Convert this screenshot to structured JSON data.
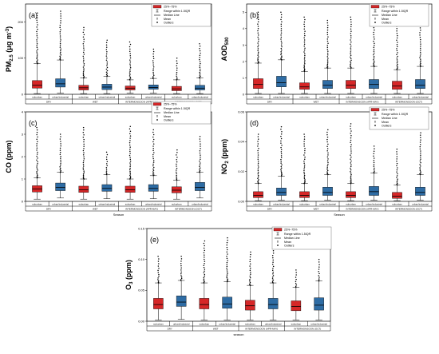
{
  "chart_data": [
    {
      "type": "box",
      "panel": "(a)",
      "ylabel": "PM2.5 (μg m-3)",
      "ylabel_main": "PM",
      "ylabel_sub": "2.5",
      "ylabel_unit": "(μg m",
      "ylabel_unit_sup": "-3",
      "ylabel_unit_end": ")",
      "ylim": [
        0,
        250
      ],
      "yticks": [
        "0",
        "100",
        "200"
      ],
      "ytick_values": [
        0,
        100,
        200
      ],
      "seasons": [
        "DRY",
        "WET",
        "INTERMONSOON (APR-MAY)",
        "INTERMONSOON (OCT)"
      ],
      "categories": [
        "suburban",
        "urban/industrial"
      ],
      "xlabel": "",
      "legend": [
        "25%~75%",
        "Range within 1.5IQR",
        "Median Line",
        "Mean",
        "Outliers"
      ],
      "boxes": [
        {
          "season": "DRY",
          "site": "suburban",
          "min": 2,
          "q1": 17,
          "median": 25,
          "q3": 38,
          "max": 85,
          "outlier_max": 225
        },
        {
          "season": "DRY",
          "site": "urban/industrial",
          "min": 3,
          "q1": 20,
          "median": 29,
          "q3": 43,
          "max": 95,
          "outlier_max": 230
        },
        {
          "season": "WET",
          "site": "suburban",
          "min": 2,
          "q1": 12,
          "median": 18,
          "q3": 25,
          "max": 45,
          "outlier_max": 185
        },
        {
          "season": "WET",
          "site": "urban/industrial",
          "min": 2,
          "q1": 13,
          "median": 20,
          "q3": 28,
          "max": 50,
          "outlier_max": 150
        },
        {
          "season": "INTERMONSOON (APR-MAY)",
          "site": "suburban",
          "min": 3,
          "q1": 12,
          "median": 17,
          "q3": 23,
          "max": 40,
          "outlier_max": 145
        },
        {
          "season": "INTERMONSOON (APR-MAY)",
          "site": "urban/industrial",
          "min": 3,
          "q1": 14,
          "median": 19,
          "q3": 26,
          "max": 44,
          "outlier_max": 125
        },
        {
          "season": "INTERMONSOON (OCT)",
          "site": "suburban",
          "min": 2,
          "q1": 10,
          "median": 15,
          "q3": 22,
          "max": 40,
          "outlier_max": 100
        },
        {
          "season": "INTERMONSOON (OCT)",
          "site": "urban/industrial",
          "min": 2,
          "q1": 12,
          "median": 17,
          "q3": 25,
          "max": 45,
          "outlier_max": 140
        }
      ]
    },
    {
      "type": "box",
      "panel": "(b)",
      "ylabel": "AOD500",
      "ylabel_main": "AOD",
      "ylabel_sub": "500",
      "ylim": [
        0,
        5.5
      ],
      "yticks": [
        "0",
        "1",
        "2",
        "3",
        "4",
        "5"
      ],
      "ytick_values": [
        0,
        1,
        2,
        3,
        4,
        5
      ],
      "seasons": [
        "DRY",
        "WET",
        "INTERMONSOON (APR-MAY)",
        "INTERMONSOON (OCT)"
      ],
      "categories": [
        "suburban",
        "urban/industrial"
      ],
      "legend": [
        "25%~75%",
        "Range within 1.5IQR",
        "Median Line",
        "Mean",
        "Outliers"
      ],
      "boxes": [
        {
          "season": "DRY",
          "site": "suburban",
          "min": 0.05,
          "q1": 0.35,
          "median": 0.6,
          "q3": 0.95,
          "max": 1.9,
          "outlier_max": 5.0
        },
        {
          "season": "DRY",
          "site": "urban/industrial",
          "min": 0.05,
          "q1": 0.45,
          "median": 0.7,
          "q3": 1.1,
          "max": 2.1,
          "outlier_max": 5.0
        },
        {
          "season": "WET",
          "site": "suburban",
          "min": 0.05,
          "q1": 0.3,
          "median": 0.45,
          "q3": 0.7,
          "max": 1.4,
          "outlier_max": 4.7
        },
        {
          "season": "WET",
          "site": "urban/industrial",
          "min": 0.05,
          "q1": 0.35,
          "median": 0.55,
          "q3": 0.85,
          "max": 1.6,
          "outlier_max": 4.5
        },
        {
          "season": "INTERMONSOON (APR-MAY)",
          "site": "suburban",
          "min": 0.05,
          "q1": 0.35,
          "median": 0.55,
          "q3": 0.85,
          "max": 1.6,
          "outlier_max": 4.7
        },
        {
          "season": "INTERMONSOON (APR-MAY)",
          "site": "urban/industrial",
          "min": 0.05,
          "q1": 0.35,
          "median": 0.6,
          "q3": 0.9,
          "max": 1.7,
          "outlier_max": 4.5
        },
        {
          "season": "INTERMONSOON (OCT)",
          "site": "suburban",
          "min": 0.05,
          "q1": 0.3,
          "median": 0.5,
          "q3": 0.8,
          "max": 1.5,
          "outlier_max": 4.3
        },
        {
          "season": "INTERMONSOON (OCT)",
          "site": "urban/industrial",
          "min": 0.05,
          "q1": 0.35,
          "median": 0.55,
          "q3": 0.9,
          "max": 1.7,
          "outlier_max": 4.2
        }
      ]
    },
    {
      "type": "box",
      "panel": "(c)",
      "ylabel": "CO (ppm)",
      "ylabel_main": "CO (ppm)",
      "ylim": [
        0,
        4
      ],
      "yticks": [
        "0",
        "1",
        "2",
        "3",
        "4"
      ],
      "ytick_values": [
        0,
        1,
        2,
        3,
        4
      ],
      "seasons": [
        "DRY",
        "WET",
        "INTERMONSOON (APR-MAY)",
        "INTERMONSOON (OCT)"
      ],
      "categories": [
        "suburban",
        "urban/industrial"
      ],
      "xlabel": "Season",
      "legend": [
        "25%~75%",
        "Range within 1.5IQR",
        "Median Line",
        "Mean",
        "Outliers"
      ],
      "boxes": [
        {
          "season": "DRY",
          "site": "suburban",
          "min": 0.1,
          "q1": 0.42,
          "median": 0.55,
          "q3": 0.7,
          "max": 1.05,
          "outlier_max": 3.3
        },
        {
          "season": "DRY",
          "site": "urban/industrial",
          "min": 0.15,
          "q1": 0.48,
          "median": 0.62,
          "q3": 0.82,
          "max": 1.3,
          "outlier_max": 3.0
        },
        {
          "season": "WET",
          "site": "suburban",
          "min": 0.1,
          "q1": 0.4,
          "median": 0.52,
          "q3": 0.68,
          "max": 1.0,
          "outlier_max": 3.3
        },
        {
          "season": "WET",
          "site": "urban/industrial",
          "min": 0.12,
          "q1": 0.45,
          "median": 0.58,
          "q3": 0.75,
          "max": 1.2,
          "outlier_max": 2.2
        },
        {
          "season": "INTERMONSOON (APR-MAY)",
          "site": "suburban",
          "min": 0.1,
          "q1": 0.4,
          "median": 0.52,
          "q3": 0.68,
          "max": 1.0,
          "outlier_max": 3.35
        },
        {
          "season": "INTERMONSOON (APR-MAY)",
          "site": "urban/industrial",
          "min": 0.12,
          "q1": 0.45,
          "median": 0.58,
          "q3": 0.75,
          "max": 1.15,
          "outlier_max": 3.2
        },
        {
          "season": "INTERMONSOON (OCT)",
          "site": "suburban",
          "min": 0.1,
          "q1": 0.38,
          "median": 0.5,
          "q3": 0.65,
          "max": 0.95,
          "outlier_max": 2.3
        },
        {
          "season": "INTERMONSOON (OCT)",
          "site": "urban/industrial",
          "min": 0.15,
          "q1": 0.48,
          "median": 0.62,
          "q3": 0.85,
          "max": 1.3,
          "outlier_max": 2.9
        }
      ]
    },
    {
      "type": "box",
      "panel": "(d)",
      "ylabel": "NO2 (ppm)",
      "ylabel_main": "NO",
      "ylabel_sub": "2",
      "ylabel_unit": " (ppm)",
      "ylim": [
        0,
        0.06
      ],
      "yticks": [
        "0.00",
        "0.02",
        "0.04",
        "0.06"
      ],
      "ytick_values": [
        0,
        0.02,
        0.04,
        0.06
      ],
      "seasons": [
        "DRY",
        "WET",
        "INTERMONSOON (APR-MAY)",
        "INTERMONSOON (OCT)"
      ],
      "categories": [
        "suburban",
        "urban/industrial"
      ],
      "xlabel": "Season",
      "legend": [
        "25%~75%",
        "Range within 1.5IQR",
        "Median Line",
        "Mean",
        "Outliers"
      ],
      "boxes": [
        {
          "season": "DRY",
          "site": "suburban",
          "min": 0.0005,
          "q1": 0.0025,
          "median": 0.004,
          "q3": 0.0065,
          "max": 0.012,
          "outlier_max": 0.045
        },
        {
          "season": "DRY",
          "site": "urban/industrial",
          "min": 0.0008,
          "q1": 0.004,
          "median": 0.006,
          "q3": 0.009,
          "max": 0.017,
          "outlier_max": 0.05
        },
        {
          "season": "WET",
          "site": "suburban",
          "min": 0.0005,
          "q1": 0.0025,
          "median": 0.004,
          "q3": 0.0065,
          "max": 0.012,
          "outlier_max": 0.045
        },
        {
          "season": "WET",
          "site": "urban/industrial",
          "min": 0.0008,
          "q1": 0.004,
          "median": 0.006,
          "q3": 0.0095,
          "max": 0.018,
          "outlier_max": 0.048
        },
        {
          "season": "INTERMONSOON (APR-MAY)",
          "site": "suburban",
          "min": 0.0005,
          "q1": 0.0025,
          "median": 0.004,
          "q3": 0.0065,
          "max": 0.012,
          "outlier_max": 0.052
        },
        {
          "season": "INTERMONSOON (APR-MAY)",
          "site": "urban/industrial",
          "min": 0.0008,
          "q1": 0.004,
          "median": 0.0065,
          "q3": 0.01,
          "max": 0.019,
          "outlier_max": 0.037
        },
        {
          "season": "INTERMONSOON (OCT)",
          "site": "suburban",
          "min": 0.0005,
          "q1": 0.002,
          "median": 0.0035,
          "q3": 0.006,
          "max": 0.011,
          "outlier_max": 0.035
        },
        {
          "season": "INTERMONSOON (OCT)",
          "site": "urban/industrial",
          "min": 0.0008,
          "q1": 0.004,
          "median": 0.006,
          "q3": 0.0095,
          "max": 0.018,
          "outlier_max": 0.046
        }
      ]
    },
    {
      "type": "box",
      "panel": "(e)",
      "ylabel": "O3 (ppm)",
      "ylabel_main": "O",
      "ylabel_sub": "3",
      "ylabel_unit": " (ppm)",
      "ylim": [
        0,
        0.15
      ],
      "yticks": [
        "0.00",
        "0.05",
        "0.10",
        "0.15"
      ],
      "ytick_values": [
        0,
        0.05,
        0.1,
        0.15
      ],
      "seasons": [
        "DRY",
        "WET",
        "INTERMONSOON (APR-MAY)",
        "INTERMONSOON (OCT)"
      ],
      "categories": [
        "suburban",
        "urban/industrial"
      ],
      "xlabel": "season",
      "legend": [
        "25%~75%",
        "Range within 1.5IQR",
        "Median Line",
        "Mean",
        "Outliers"
      ],
      "boxes": [
        {
          "season": "DRY",
          "site": "suburban",
          "min": 0.002,
          "q1": 0.02,
          "median": 0.027,
          "q3": 0.037,
          "max": 0.062,
          "outlier_max": 0.105
        },
        {
          "season": "DRY",
          "site": "urban/industrial",
          "min": 0.003,
          "q1": 0.024,
          "median": 0.031,
          "q3": 0.041,
          "max": 0.066,
          "outlier_max": 0.105
        },
        {
          "season": "WET",
          "site": "suburban",
          "min": 0.002,
          "q1": 0.02,
          "median": 0.027,
          "q3": 0.037,
          "max": 0.062,
          "outlier_max": 0.13
        },
        {
          "season": "WET",
          "site": "urban/industrial",
          "min": 0.002,
          "q1": 0.021,
          "median": 0.028,
          "q3": 0.039,
          "max": 0.064,
          "outlier_max": 0.135
        },
        {
          "season": "INTERMONSOON (APR-MAY)",
          "site": "suburban",
          "min": 0.002,
          "q1": 0.018,
          "median": 0.025,
          "q3": 0.034,
          "max": 0.058,
          "outlier_max": 0.112
        },
        {
          "season": "INTERMONSOON (APR-MAY)",
          "site": "urban/industrial",
          "min": 0.002,
          "q1": 0.02,
          "median": 0.027,
          "q3": 0.037,
          "max": 0.062,
          "outlier_max": 0.118
        },
        {
          "season": "INTERMONSOON (OCT)",
          "site": "suburban",
          "min": 0.002,
          "q1": 0.017,
          "median": 0.024,
          "q3": 0.033,
          "max": 0.055,
          "outlier_max": 0.083
        },
        {
          "season": "INTERMONSOON (OCT)",
          "site": "urban/industrial",
          "min": 0.002,
          "q1": 0.018,
          "median": 0.026,
          "q3": 0.038,
          "max": 0.065,
          "outlier_max": 0.1
        }
      ]
    }
  ],
  "colors": {
    "suburban": "#d62728",
    "urban_industrial": "#2e6ca4"
  }
}
